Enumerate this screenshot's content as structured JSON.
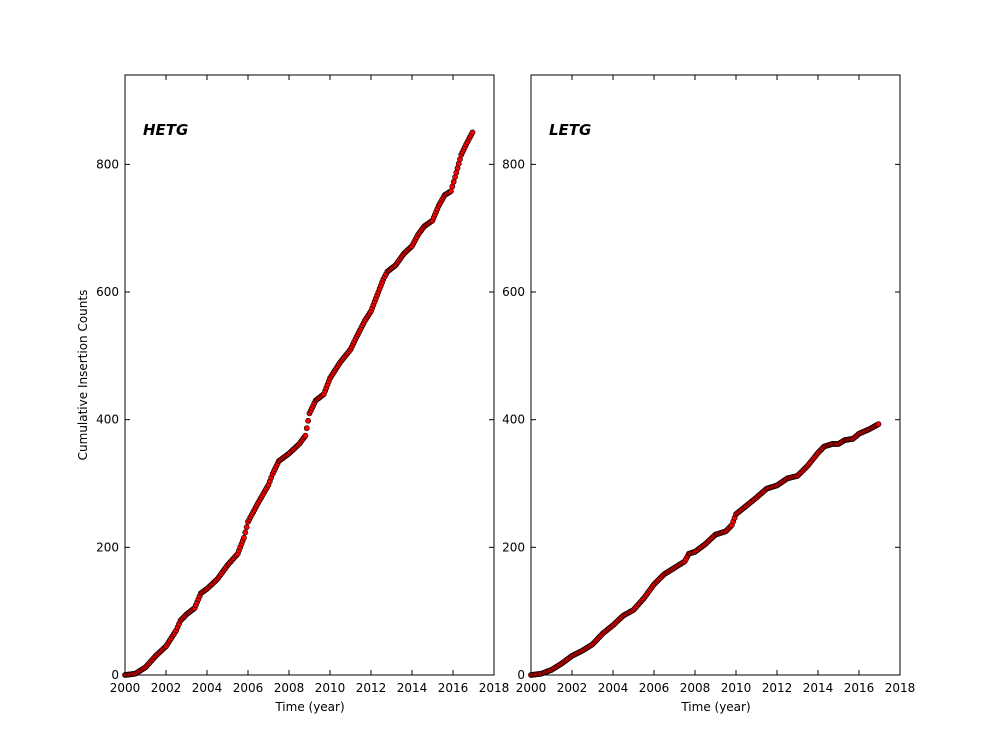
{
  "chart_data": [
    {
      "type": "scatter",
      "title": "HETG",
      "xlabel": "Time (year)",
      "ylabel": "Cumulative Insertion Counts",
      "xlim": [
        2000,
        2018
      ],
      "ylim": [
        0,
        940
      ],
      "xticks": [
        2000,
        2002,
        2004,
        2006,
        2008,
        2010,
        2012,
        2014,
        2016,
        2018
      ],
      "yticks": [
        0,
        200,
        400,
        600,
        800
      ],
      "grid": false,
      "marker_color": "#ff0000",
      "marker_edge": "#000000",
      "points": [
        [
          2000.0,
          0
        ],
        [
          2000.5,
          2
        ],
        [
          2001.0,
          12
        ],
        [
          2001.5,
          30
        ],
        [
          2002.0,
          45
        ],
        [
          2002.5,
          70
        ],
        [
          2002.7,
          85
        ],
        [
          2003.0,
          95
        ],
        [
          2003.4,
          105
        ],
        [
          2003.7,
          128
        ],
        [
          2004.0,
          135
        ],
        [
          2004.5,
          150
        ],
        [
          2005.0,
          172
        ],
        [
          2005.5,
          190
        ],
        [
          2005.8,
          215
        ],
        [
          2006.0,
          240
        ],
        [
          2006.5,
          270
        ],
        [
          2007.0,
          298
        ],
        [
          2007.2,
          315
        ],
        [
          2007.5,
          335
        ],
        [
          2008.0,
          347
        ],
        [
          2008.5,
          362
        ],
        [
          2008.8,
          375
        ],
        [
          2009.0,
          410
        ],
        [
          2009.3,
          430
        ],
        [
          2009.7,
          440
        ],
        [
          2010.0,
          465
        ],
        [
          2010.5,
          490
        ],
        [
          2011.0,
          510
        ],
        [
          2011.3,
          530
        ],
        [
          2011.7,
          555
        ],
        [
          2012.0,
          570
        ],
        [
          2012.3,
          595
        ],
        [
          2012.6,
          620
        ],
        [
          2012.8,
          632
        ],
        [
          2013.2,
          642
        ],
        [
          2013.6,
          660
        ],
        [
          2014.0,
          672
        ],
        [
          2014.3,
          690
        ],
        [
          2014.6,
          703
        ],
        [
          2015.0,
          712
        ],
        [
          2015.3,
          735
        ],
        [
          2015.6,
          752
        ],
        [
          2015.9,
          758
        ],
        [
          2016.1,
          780
        ],
        [
          2016.4,
          815
        ],
        [
          2016.7,
          835
        ],
        [
          2016.95,
          850
        ]
      ]
    },
    {
      "type": "scatter",
      "title": "LETG",
      "xlabel": "Time (year)",
      "xlim": [
        2000,
        2018
      ],
      "ylim": [
        0,
        940
      ],
      "xticks": [
        2000,
        2002,
        2004,
        2006,
        2008,
        2010,
        2012,
        2014,
        2016,
        2018
      ],
      "yticks": [
        0,
        200,
        400,
        600,
        800
      ],
      "grid": false,
      "marker_color": "#ff0000",
      "marker_edge": "#000000",
      "points": [
        [
          2000.0,
          0
        ],
        [
          2000.5,
          2
        ],
        [
          2001.0,
          8
        ],
        [
          2001.5,
          18
        ],
        [
          2002.0,
          30
        ],
        [
          2002.5,
          38
        ],
        [
          2003.0,
          48
        ],
        [
          2003.5,
          65
        ],
        [
          2004.0,
          78
        ],
        [
          2004.5,
          93
        ],
        [
          2005.0,
          102
        ],
        [
          2005.5,
          120
        ],
        [
          2006.0,
          142
        ],
        [
          2006.5,
          158
        ],
        [
          2007.0,
          168
        ],
        [
          2007.5,
          178
        ],
        [
          2007.7,
          190
        ],
        [
          2008.0,
          193
        ],
        [
          2008.5,
          205
        ],
        [
          2009.0,
          220
        ],
        [
          2009.5,
          225
        ],
        [
          2009.8,
          235
        ],
        [
          2010.0,
          252
        ],
        [
          2010.5,
          265
        ],
        [
          2011.0,
          278
        ],
        [
          2011.5,
          292
        ],
        [
          2012.0,
          297
        ],
        [
          2012.5,
          308
        ],
        [
          2013.0,
          312
        ],
        [
          2013.5,
          328
        ],
        [
          2014.0,
          348
        ],
        [
          2014.3,
          358
        ],
        [
          2014.7,
          362
        ],
        [
          2015.0,
          362
        ],
        [
          2015.3,
          368
        ],
        [
          2015.7,
          370
        ],
        [
          2016.0,
          378
        ],
        [
          2016.5,
          385
        ],
        [
          2016.95,
          393
        ]
      ]
    }
  ]
}
